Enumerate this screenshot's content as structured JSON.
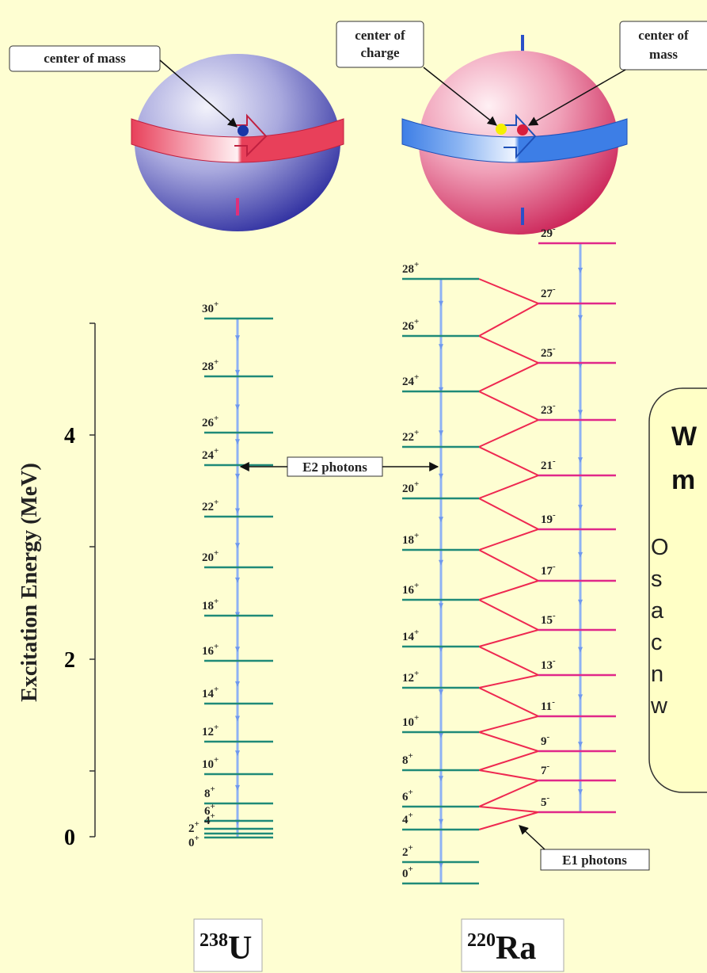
{
  "callouts": {
    "left_center_of_mass": "center of mass",
    "center_of_charge": [
      "center of",
      "charge"
    ],
    "right_center_of_mass": [
      "center of",
      "mass"
    ]
  },
  "axis": {
    "title": "Excitation Energy (MeV)",
    "tick_labels": [
      "4",
      "2",
      "0"
    ]
  },
  "photon_labels": {
    "e2": "E2 photons",
    "e1": "E1 photons"
  },
  "nuclei": [
    {
      "mass": "238",
      "symbol": "U",
      "levels": [
        {
          "j": "30",
          "parity": "+"
        },
        {
          "j": "28",
          "parity": "+"
        },
        {
          "j": "26",
          "parity": "+"
        },
        {
          "j": "24",
          "parity": "+"
        },
        {
          "j": "22",
          "parity": "+"
        },
        {
          "j": "20",
          "parity": "+"
        },
        {
          "j": "18",
          "parity": "+"
        },
        {
          "j": "16",
          "parity": "+"
        },
        {
          "j": "14",
          "parity": "+"
        },
        {
          "j": "12",
          "parity": "+"
        },
        {
          "j": "10",
          "parity": "+"
        },
        {
          "j": "8",
          "parity": "+"
        },
        {
          "j": "6",
          "parity": "+"
        },
        {
          "j": "4",
          "parity": "+"
        },
        {
          "j": "2",
          "parity": "+"
        },
        {
          "j": "0",
          "parity": "+"
        }
      ]
    },
    {
      "mass": "220",
      "symbol": "Ra",
      "levels": [
        {
          "j": "28",
          "parity": "+"
        },
        {
          "j": "26",
          "parity": "+"
        },
        {
          "j": "24",
          "parity": "+"
        },
        {
          "j": "22",
          "parity": "+"
        },
        {
          "j": "20",
          "parity": "+"
        },
        {
          "j": "18",
          "parity": "+"
        },
        {
          "j": "16",
          "parity": "+"
        },
        {
          "j": "14",
          "parity": "+"
        },
        {
          "j": "12",
          "parity": "+"
        },
        {
          "j": "10",
          "parity": "+"
        },
        {
          "j": "8",
          "parity": "+"
        },
        {
          "j": "6",
          "parity": "+"
        },
        {
          "j": "4",
          "parity": "+"
        },
        {
          "j": "2",
          "parity": "+"
        },
        {
          "j": "0",
          "parity": "+"
        }
      ],
      "odd_levels": [
        {
          "j": "29",
          "parity": "-"
        },
        {
          "j": "27",
          "parity": "-"
        },
        {
          "j": "25",
          "parity": "-"
        },
        {
          "j": "23",
          "parity": "-"
        },
        {
          "j": "21",
          "parity": "-"
        },
        {
          "j": "19",
          "parity": "-"
        },
        {
          "j": "17",
          "parity": "-"
        },
        {
          "j": "15",
          "parity": "-"
        },
        {
          "j": "13",
          "parity": "-"
        },
        {
          "j": "11",
          "parity": "-"
        },
        {
          "j": "9",
          "parity": "-"
        },
        {
          "j": "7",
          "parity": "-"
        },
        {
          "j": "5",
          "parity": "-"
        }
      ]
    }
  ],
  "side_box": {
    "heading": [
      "W",
      "m"
    ],
    "body": [
      "O",
      "s",
      "a",
      "c",
      "n",
      "w"
    ]
  }
}
